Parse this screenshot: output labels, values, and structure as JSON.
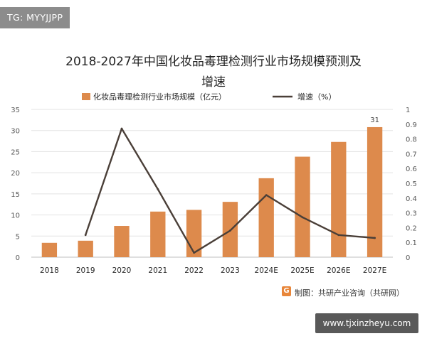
{
  "watermark_tag": "TG: MYYJJPP",
  "chart_data": {
    "type": "bar+line",
    "title_line1": "2018-2027年中国化妆品毒理检测行业市场规模预测及",
    "title_line2": "增速",
    "categories": [
      "2018",
      "2019",
      "2020",
      "2021",
      "2022",
      "2023",
      "2024E",
      "2025E",
      "2026E",
      "2027E"
    ],
    "series": [
      {
        "name": "化妆品毒理检测行业市场规模（亿元）",
        "type": "bar",
        "axis": "left",
        "values": [
          3.4,
          3.9,
          7.4,
          10.8,
          11.2,
          13.1,
          18.7,
          23.8,
          27.3,
          30.8
        ],
        "color": "#dd8a4c"
      },
      {
        "name": "增速（%）",
        "type": "line",
        "axis": "right",
        "values": [
          null,
          0.15,
          0.87,
          0.46,
          0.03,
          0.18,
          0.42,
          0.27,
          0.15,
          0.13
        ],
        "color": "#4a3f38"
      }
    ],
    "data_labels": [
      {
        "category": "2027E",
        "text": "31"
      }
    ],
    "left_axis": {
      "ylim": [
        0,
        35
      ],
      "ticks": [
        "0",
        "5",
        "10",
        "15",
        "20",
        "25",
        "30",
        "35"
      ]
    },
    "right_axis": {
      "ylim": [
        0,
        1
      ],
      "ticks": [
        "0",
        "0.1",
        "0.2",
        "0.3",
        "0.4",
        "0.5",
        "0.6",
        "0.7",
        "0.8",
        "0.9",
        "1"
      ]
    },
    "grid": true,
    "legend_position": "top"
  },
  "source_logo": "G",
  "source_text": "制图：共研产业咨询（共研网）",
  "footer_url": "www.tjxinzheyu.com"
}
